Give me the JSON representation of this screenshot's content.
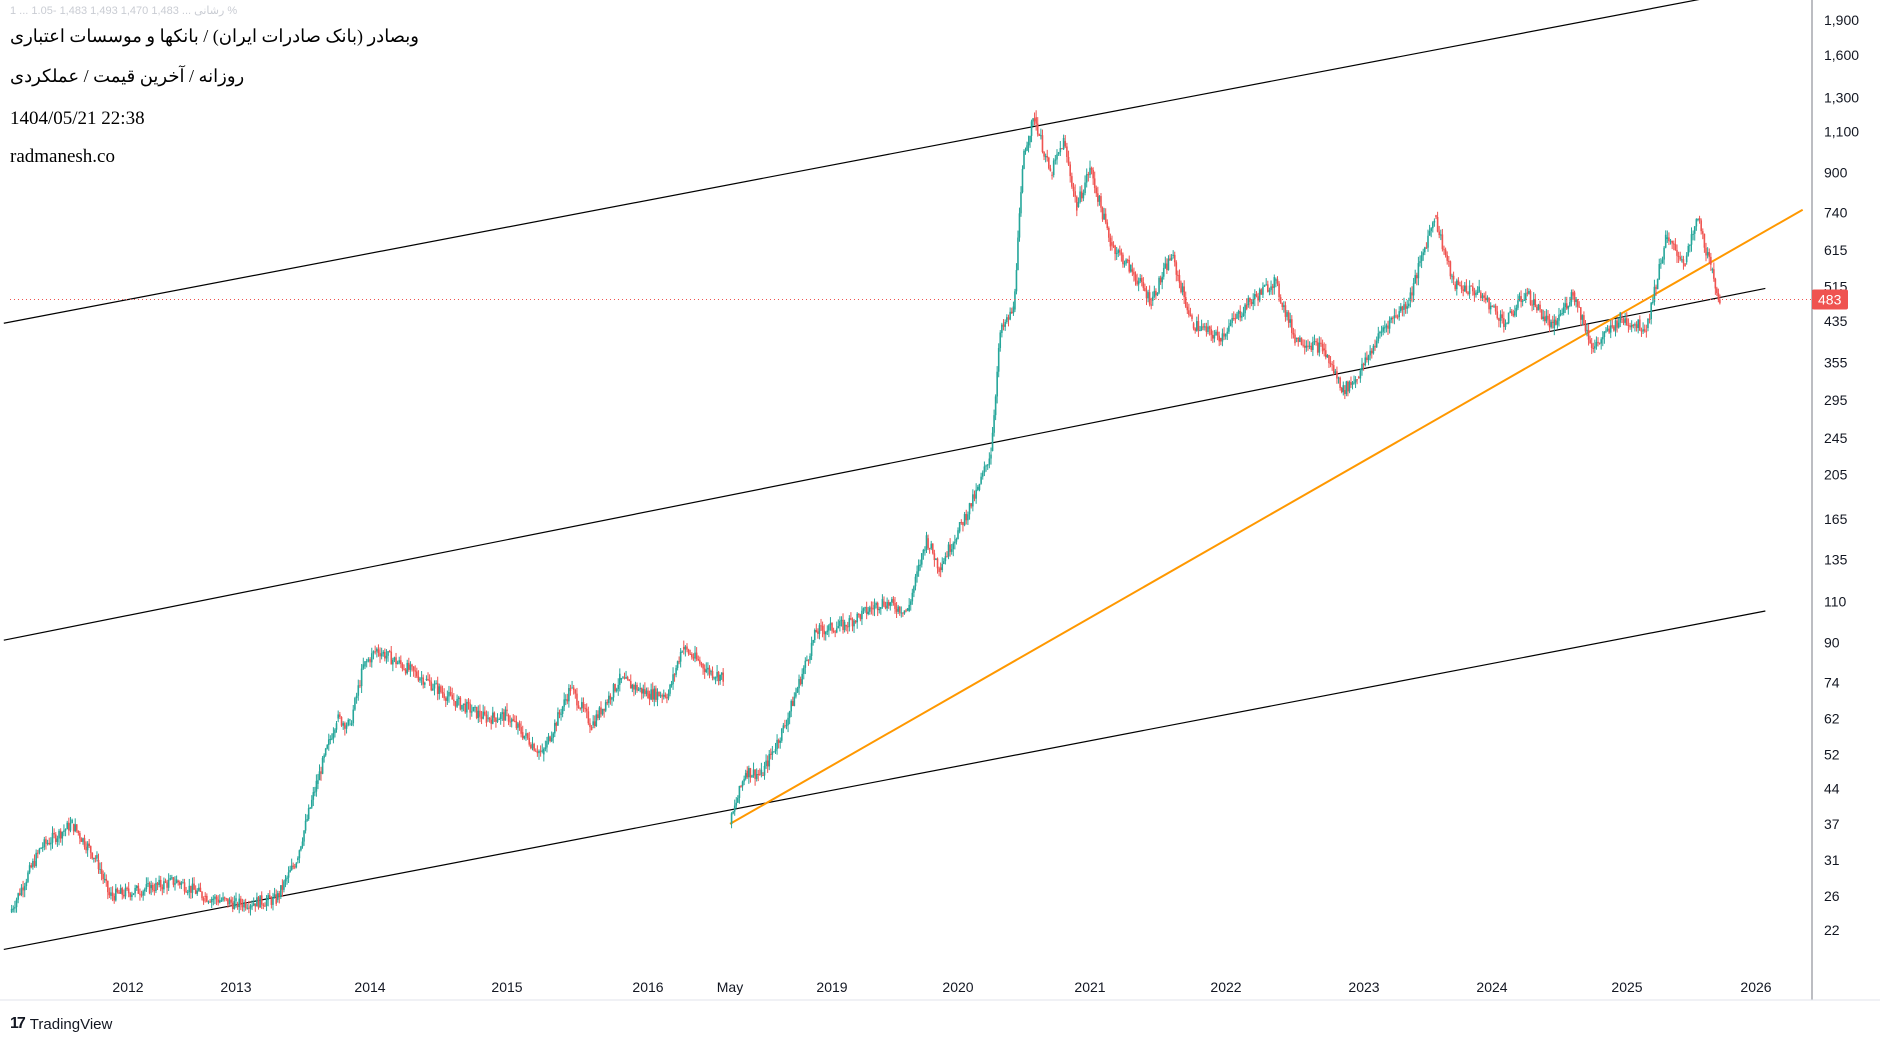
{
  "header": {
    "legend_faint": "1 ... رشانی ... 1,483 1,470 1,493 1,483 -1.05 %",
    "title": "وبصادر (بانک صادرات ایران) / بانکها و موسسات اعتباری",
    "subtitle": "روزانه / آخرین قیمت / عملکردی",
    "datetime": "1404/05/21 22:38",
    "website": "radmanesh.co"
  },
  "branding": {
    "logo_icon": "tradingview-logo-icon",
    "logo_glyph": "17",
    "name": "TradingView"
  },
  "colors": {
    "up": "#26a69a",
    "down": "#ef5350",
    "channel": "#000000",
    "trendline": "#ff9800",
    "price_line": "#ef5350",
    "price_badge": "#ef5350"
  },
  "chart_data": {
    "type": "candlestick",
    "scale": "log",
    "grid": false,
    "current_price": 483,
    "current_price_label": "483",
    "y_ticks": [
      1900,
      1600,
      1300,
      1100,
      900,
      740,
      615,
      515,
      435,
      355,
      295,
      245,
      205,
      165,
      135,
      110,
      90,
      74,
      62,
      52,
      44,
      37,
      31,
      26,
      22
    ],
    "y_tick_labels": [
      "1,900",
      "1,600",
      "1,300",
      "1,100",
      "900",
      "740",
      "615",
      "515",
      "435",
      "355",
      "295",
      "245",
      "205",
      "165",
      "135",
      "110",
      "90",
      "74",
      "62",
      "52",
      "44",
      "37",
      "31",
      "26",
      "22"
    ],
    "x_labels": [
      "2012",
      "2013",
      "2014",
      "2015",
      "2016",
      "May",
      "2019",
      "2020",
      "2021",
      "2022",
      "2023",
      "2024",
      "2025",
      "2026"
    ],
    "price_path": [
      [
        "2011.05",
        24
      ],
      [
        "2011.3",
        33
      ],
      [
        "2011.55",
        37
      ],
      [
        "2011.75",
        31
      ],
      [
        "2011.85",
        26
      ],
      [
        "2012.2",
        27
      ],
      [
        "2012.45",
        28
      ],
      [
        "2012.7",
        26
      ],
      [
        "2013.0",
        25
      ],
      [
        "2013.3",
        25.5
      ],
      [
        "2013.45",
        31
      ],
      [
        "2013.6",
        45
      ],
      [
        "2013.75",
        62
      ],
      [
        "2013.85",
        60
      ],
      [
        "2013.95",
        80
      ],
      [
        "2014.05",
        87
      ],
      [
        "2014.4",
        75
      ],
      [
        "2014.6",
        68
      ],
      [
        "2014.85",
        62
      ],
      [
        "2015.0",
        63
      ],
      [
        "2015.1",
        58
      ],
      [
        "2015.25",
        52
      ],
      [
        "2015.45",
        72
      ],
      [
        "2015.6",
        60
      ],
      [
        "2015.8",
        75
      ],
      [
        "2016.0",
        70
      ],
      [
        "2016.15",
        70
      ],
      [
        "2016.25",
        88
      ],
      [
        "2016.45",
        78
      ],
      [
        "2016.55",
        76
      ],
      [
        "2018.35",
        37
      ],
      [
        "2018.45",
        48
      ],
      [
        "2018.55",
        47
      ],
      [
        "2018.7",
        60
      ],
      [
        "2018.9",
        95
      ],
      [
        "2019.1",
        98
      ],
      [
        "2019.4",
        110
      ],
      [
        "2019.6",
        105
      ],
      [
        "2019.75",
        150
      ],
      [
        "2019.85",
        130
      ],
      [
        "2020.0",
        155
      ],
      [
        "2020.15",
        190
      ],
      [
        "2020.25",
        230
      ],
      [
        "2020.32",
        410
      ],
      [
        "2020.42",
        460
      ],
      [
        "2020.5",
        1000
      ],
      [
        "2020.58",
        1180
      ],
      [
        "2020.7",
        890
      ],
      [
        "2020.8",
        1050
      ],
      [
        "2020.9",
        760
      ],
      [
        "2021.0",
        920
      ],
      [
        "2021.15",
        640
      ],
      [
        "2021.3",
        560
      ],
      [
        "2021.45",
        480
      ],
      [
        "2021.6",
        600
      ],
      [
        "2021.75",
        430
      ],
      [
        "2021.95",
        400
      ],
      [
        "2022.15",
        470
      ],
      [
        "2022.35",
        530
      ],
      [
        "2022.5",
        400
      ],
      [
        "2022.7",
        380
      ],
      [
        "2022.85",
        310
      ],
      [
        "2022.95",
        330
      ],
      [
        "2023.15",
        420
      ],
      [
        "2023.35",
        480
      ],
      [
        "2023.55",
        730
      ],
      [
        "2023.7",
        520
      ],
      [
        "2023.9",
        500
      ],
      [
        "2024.1",
        430
      ],
      [
        "2024.25",
        500
      ],
      [
        "2024.45",
        420
      ],
      [
        "2024.6",
        500
      ],
      [
        "2024.75",
        380
      ],
      [
        "2024.95",
        440
      ],
      [
        "2025.15",
        420
      ],
      [
        "2025.3",
        650
      ],
      [
        "2025.45",
        580
      ],
      [
        "2025.55",
        720
      ],
      [
        "2025.65",
        560
      ],
      [
        "2025.72",
        483
      ]
    ],
    "trend_lines": [
      {
        "role": "channel-upper",
        "from": [
          "2011.0",
          430
        ],
        "to": [
          "2025.75",
          2150
        ]
      },
      {
        "role": "channel-mid",
        "from": [
          "2011.0",
          91
        ],
        "to": [
          "2026.1",
          510
        ]
      },
      {
        "role": "channel-lower",
        "from": [
          "2011.0",
          20
        ],
        "to": [
          "2026.1",
          105
        ]
      },
      {
        "role": "support-orange",
        "from": [
          "2018.35",
          37
        ],
        "to": [
          "2026.5",
          750
        ]
      }
    ]
  }
}
